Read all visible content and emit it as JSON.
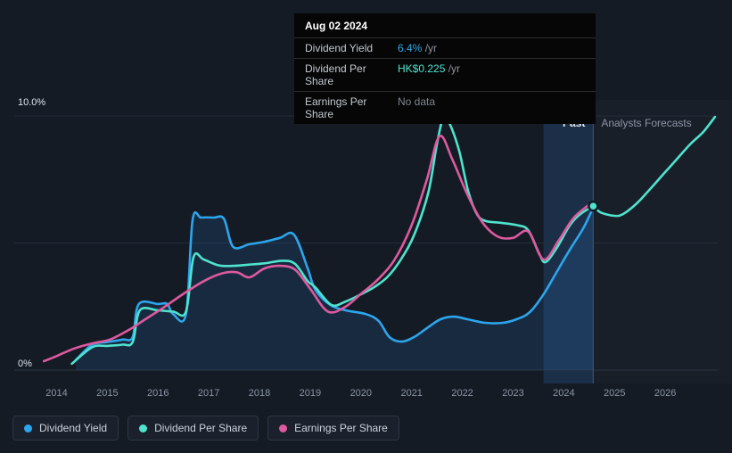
{
  "tooltip": {
    "date": "Aug 02 2024",
    "rows": [
      {
        "label": "Dividend Yield",
        "value": "6.4%",
        "suffix": " /yr",
        "value_color": "#2ea7e6"
      },
      {
        "label": "Dividend Per Share",
        "value": "HK$0.225",
        "suffix": " /yr",
        "value_color": "#4fe3cd"
      },
      {
        "label": "Earnings Per Share",
        "value": "No data",
        "suffix": "",
        "value_color": "#7f858e"
      }
    ]
  },
  "legend": [
    {
      "label": "Dividend Yield",
      "color": "#2da5ec"
    },
    {
      "label": "Dividend Per Share",
      "color": "#4fe3cd"
    },
    {
      "label": "Earnings Per Share",
      "color": "#dd5a9e"
    }
  ],
  "chart_data": {
    "type": "line",
    "title": "",
    "xlabel": "",
    "ylabel": "",
    "x_range": [
      2013.2,
      2027.0
    ],
    "y_range": [
      0,
      10
    ],
    "y_top_label": "10.0%",
    "y_bottom_label": "0%",
    "gridline_values": [
      0,
      5,
      10
    ],
    "x_ticks": [
      2014,
      2015,
      2016,
      2017,
      2018,
      2019,
      2020,
      2021,
      2022,
      2023,
      2024,
      2025,
      2026
    ],
    "past_label": "Past",
    "forecast_label": "Analysts Forecasts",
    "past_band_start_x": 2023.6,
    "divider_x": 2024.58,
    "marker": {
      "x": 2024.58,
      "y": 6.45,
      "color": "#4fe3cd"
    },
    "series": [
      {
        "name": "Dividend Yield",
        "color": "#2da5ec",
        "area_fill": "rgba(45,125,205,0.16)",
        "points": [
          [
            2014.38,
            0.4
          ],
          [
            2014.7,
            1.0
          ],
          [
            2015.0,
            1.1
          ],
          [
            2015.3,
            1.2
          ],
          [
            2015.5,
            1.3
          ],
          [
            2015.62,
            2.6
          ],
          [
            2016.0,
            2.6
          ],
          [
            2016.18,
            2.6
          ],
          [
            2016.3,
            2.2
          ],
          [
            2016.55,
            2.2
          ],
          [
            2016.68,
            5.9
          ],
          [
            2016.85,
            6.0
          ],
          [
            2017.1,
            6.0
          ],
          [
            2017.3,
            5.95
          ],
          [
            2017.48,
            4.85
          ],
          [
            2017.8,
            4.95
          ],
          [
            2018.1,
            5.05
          ],
          [
            2018.4,
            5.2
          ],
          [
            2018.68,
            5.33
          ],
          [
            2018.95,
            4.0
          ],
          [
            2019.1,
            3.16
          ],
          [
            2019.4,
            2.56
          ],
          [
            2019.7,
            2.35
          ],
          [
            2020.1,
            2.2
          ],
          [
            2020.35,
            1.93
          ],
          [
            2020.56,
            1.3
          ],
          [
            2020.8,
            1.12
          ],
          [
            2021.05,
            1.3
          ],
          [
            2021.3,
            1.65
          ],
          [
            2021.57,
            2.0
          ],
          [
            2021.83,
            2.1
          ],
          [
            2022.1,
            2.0
          ],
          [
            2022.45,
            1.86
          ],
          [
            2022.8,
            1.86
          ],
          [
            2023.07,
            2.0
          ],
          [
            2023.33,
            2.28
          ],
          [
            2023.6,
            2.98
          ],
          [
            2023.86,
            3.86
          ],
          [
            2024.12,
            4.74
          ],
          [
            2024.39,
            5.6
          ],
          [
            2024.58,
            6.4
          ]
        ]
      },
      {
        "name": "Dividend Per Share",
        "color": "#4fe3cd",
        "points": [
          [
            2014.3,
            0.25
          ],
          [
            2014.7,
            0.9
          ],
          [
            2015.0,
            0.95
          ],
          [
            2015.3,
            1.0
          ],
          [
            2015.5,
            1.1
          ],
          [
            2015.64,
            2.35
          ],
          [
            2016.0,
            2.35
          ],
          [
            2016.3,
            2.3
          ],
          [
            2016.55,
            2.3
          ],
          [
            2016.7,
            4.45
          ],
          [
            2016.9,
            4.35
          ],
          [
            2017.2,
            4.12
          ],
          [
            2017.5,
            4.1
          ],
          [
            2017.8,
            4.15
          ],
          [
            2018.1,
            4.2
          ],
          [
            2018.45,
            4.3
          ],
          [
            2018.7,
            4.18
          ],
          [
            2018.95,
            3.5
          ],
          [
            2019.1,
            3.26
          ],
          [
            2019.42,
            2.56
          ],
          [
            2019.7,
            2.7
          ],
          [
            2020.0,
            2.98
          ],
          [
            2020.26,
            3.26
          ],
          [
            2020.53,
            3.68
          ],
          [
            2020.8,
            4.39
          ],
          [
            2021.06,
            5.37
          ],
          [
            2021.33,
            7.0
          ],
          [
            2021.5,
            8.9
          ],
          [
            2021.63,
            9.96
          ],
          [
            2021.77,
            9.6
          ],
          [
            2021.94,
            8.6
          ],
          [
            2022.12,
            7.0
          ],
          [
            2022.3,
            6.1
          ],
          [
            2022.47,
            5.86
          ],
          [
            2022.73,
            5.8
          ],
          [
            2023.08,
            5.7
          ],
          [
            2023.3,
            5.5
          ],
          [
            2023.52,
            4.56
          ],
          [
            2023.64,
            4.25
          ],
          [
            2023.86,
            4.8
          ],
          [
            2024.12,
            5.7
          ],
          [
            2024.33,
            6.14
          ],
          [
            2024.58,
            6.45
          ]
        ],
        "forecast_points": [
          [
            2024.58,
            6.45
          ],
          [
            2024.73,
            6.2
          ],
          [
            2025.0,
            6.07
          ],
          [
            2025.17,
            6.14
          ],
          [
            2025.44,
            6.56
          ],
          [
            2025.7,
            7.12
          ],
          [
            2025.96,
            7.7
          ],
          [
            2026.23,
            8.3
          ],
          [
            2026.49,
            8.88
          ],
          [
            2026.75,
            9.37
          ],
          [
            2026.98,
            9.96
          ]
        ]
      },
      {
        "name": "Earnings Per Share",
        "color": "#dd5a9e",
        "points": [
          [
            2013.75,
            0.35
          ],
          [
            2014.0,
            0.55
          ],
          [
            2014.35,
            0.85
          ],
          [
            2014.7,
            1.05
          ],
          [
            2015.05,
            1.2
          ],
          [
            2015.4,
            1.55
          ],
          [
            2015.75,
            2.0
          ],
          [
            2016.1,
            2.45
          ],
          [
            2016.5,
            3.0
          ],
          [
            2016.9,
            3.5
          ],
          [
            2017.25,
            3.8
          ],
          [
            2017.55,
            3.85
          ],
          [
            2017.8,
            3.65
          ],
          [
            2018.1,
            4.0
          ],
          [
            2018.4,
            4.1
          ],
          [
            2018.7,
            3.95
          ],
          [
            2019.0,
            3.2
          ],
          [
            2019.35,
            2.3
          ],
          [
            2019.7,
            2.5
          ],
          [
            2020.0,
            3.0
          ],
          [
            2020.3,
            3.5
          ],
          [
            2020.65,
            4.3
          ],
          [
            2021.0,
            5.7
          ],
          [
            2021.3,
            7.5
          ],
          [
            2021.55,
            9.2
          ],
          [
            2021.8,
            8.3
          ],
          [
            2022.1,
            6.9
          ],
          [
            2022.4,
            5.8
          ],
          [
            2022.7,
            5.25
          ],
          [
            2023.0,
            5.2
          ],
          [
            2023.3,
            5.45
          ],
          [
            2023.6,
            4.35
          ],
          [
            2023.9,
            5.1
          ],
          [
            2024.2,
            6.0
          ],
          [
            2024.56,
            6.6
          ]
        ]
      }
    ]
  }
}
